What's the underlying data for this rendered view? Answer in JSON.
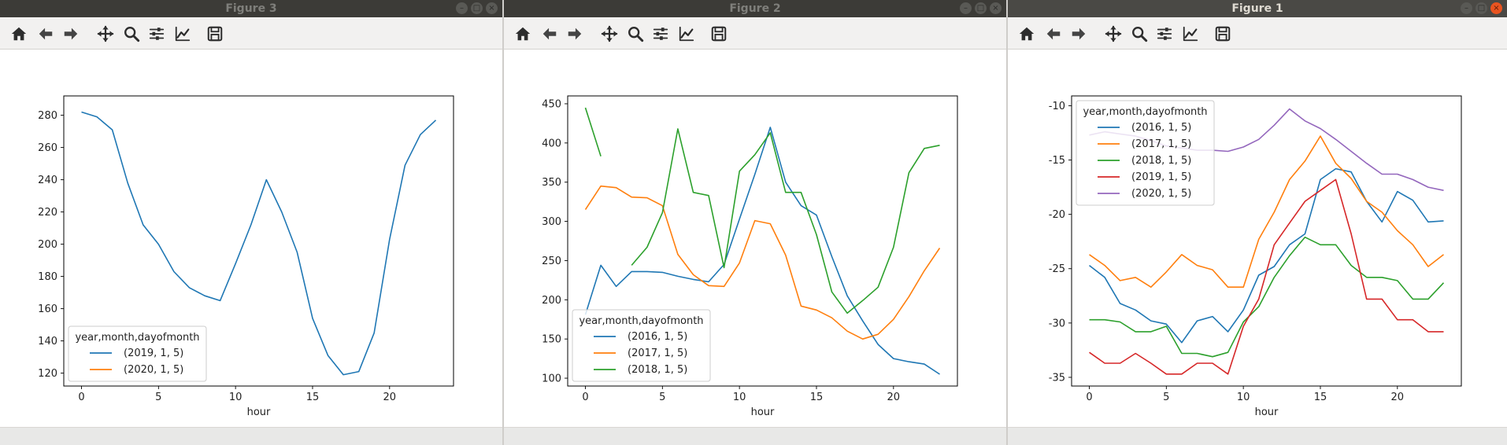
{
  "windows": [
    {
      "title": "Figure 3",
      "active": false,
      "chart": {
        "type": "line",
        "xlabel": "hour",
        "xlim": [
          -1.15,
          24.15
        ],
        "ylim": [
          112,
          292
        ],
        "xticks": [
          0,
          5,
          10,
          15,
          20
        ],
        "yticks": [
          120,
          140,
          160,
          180,
          200,
          220,
          240,
          260,
          280
        ],
        "legend": {
          "title": "year,month,dayofmonth",
          "position": "lower left",
          "entries": [
            {
              "label": "(2019, 1, 5)",
              "color": "#1f77b4"
            },
            {
              "label": "(2020, 1, 5)",
              "color": "#ff7f0e"
            }
          ]
        },
        "series": [
          {
            "name": "(2019, 1, 5)",
            "color": "#1f77b4",
            "x": [
              0,
              1,
              2,
              3,
              4,
              5,
              6,
              7,
              8,
              9,
              10,
              11,
              12,
              13,
              14,
              15,
              16,
              17,
              18,
              19,
              20,
              21,
              22,
              23
            ],
            "values": [
              282,
              279,
              271,
              238,
              212,
              200,
              183,
              173,
              168,
              165,
              188,
              212,
              240,
              220,
              195,
              154,
              131,
              119,
              121,
              145,
              203,
              249,
              268,
              277
            ]
          },
          {
            "name": "(2020, 1, 5)",
            "color": "#ff7f0e",
            "x": [],
            "values": []
          }
        ]
      }
    },
    {
      "title": "Figure 2",
      "active": false,
      "chart": {
        "type": "line",
        "xlabel": "hour",
        "xlim": [
          -1.15,
          24.15
        ],
        "ylim": [
          90,
          460
        ],
        "xticks": [
          0,
          5,
          10,
          15,
          20
        ],
        "yticks": [
          100,
          150,
          200,
          250,
          300,
          350,
          400,
          450
        ],
        "legend": {
          "title": "year,month,dayofmonth",
          "position": "lower left",
          "entries": [
            {
              "label": "(2016, 1, 5)",
              "color": "#1f77b4"
            },
            {
              "label": "(2017, 1, 5)",
              "color": "#ff7f0e"
            },
            {
              "label": "(2018, 1, 5)",
              "color": "#2ca02c"
            }
          ]
        },
        "series": [
          {
            "name": "(2016, 1, 5)",
            "color": "#1f77b4",
            "x": [
              0,
              1,
              2,
              3,
              4,
              5,
              6,
              7,
              8,
              9,
              10,
              11,
              12,
              13,
              14,
              15,
              16,
              17,
              18,
              19,
              20,
              21,
              22,
              23
            ],
            "values": [
              181,
              244,
              217,
              236,
              236,
              235,
              230,
              226,
              223,
              245,
              303,
              360,
              420,
              350,
              320,
              308,
              255,
              205,
              173,
              143,
              125,
              121,
              118,
              105
            ]
          },
          {
            "name": "(2017, 1, 5)",
            "color": "#ff7f0e",
            "x": [
              0,
              1,
              2,
              3,
              4,
              5,
              6,
              7,
              8,
              9,
              10,
              11,
              12,
              13,
              14,
              15,
              16,
              17,
              18,
              19,
              20,
              21,
              22,
              23
            ],
            "values": [
              315,
              345,
              343,
              331,
              330,
              320,
              258,
              232,
              218,
              217,
              247,
              301,
              297,
              257,
              192,
              187,
              177,
              160,
              150,
              156,
              175,
              204,
              237,
              266
            ]
          },
          {
            "name": "(2018, 1, 5)",
            "color": "#2ca02c",
            "x": [
              0,
              1,
              null,
              3,
              4,
              5,
              6,
              7,
              8,
              9,
              10,
              11,
              12,
              13,
              14,
              15,
              16,
              17,
              18,
              19,
              20,
              21,
              22,
              23
            ],
            "values": [
              445,
              383,
              null,
              244,
              267,
              311,
              418,
              337,
              333,
              241,
              364,
              385,
              413,
              337,
              337,
              283,
              210,
              183,
              199,
              216,
              267,
              362,
              393,
              397
            ]
          }
        ]
      }
    },
    {
      "title": "Figure 1",
      "active": true,
      "chart": {
        "type": "line",
        "xlabel": "hour",
        "xlim": [
          -1.15,
          24.15
        ],
        "ylim": [
          -35.8,
          -9.1
        ],
        "xticks": [
          0,
          5,
          10,
          15,
          20
        ],
        "yticks": [
          -35,
          -30,
          -25,
          -20,
          -15,
          -10
        ],
        "legend": {
          "title": "year,month,dayofmonth",
          "position": "upper left",
          "entries": [
            {
              "label": "(2016, 1, 5)",
              "color": "#1f77b4"
            },
            {
              "label": "(2017, 1, 5)",
              "color": "#ff7f0e"
            },
            {
              "label": "(2018, 1, 5)",
              "color": "#2ca02c"
            },
            {
              "label": "(2019, 1, 5)",
              "color": "#d62728"
            },
            {
              "label": "(2020, 1, 5)",
              "color": "#9467bd"
            }
          ]
        },
        "series": [
          {
            "name": "(2016, 1, 5)",
            "color": "#1f77b4",
            "x": [
              0,
              1,
              2,
              3,
              4,
              5,
              6,
              7,
              8,
              9,
              10,
              11,
              12,
              13,
              14,
              15,
              16,
              17,
              18,
              19,
              20,
              21,
              22,
              23
            ],
            "values": [
              -24.7,
              -25.8,
              -28.2,
              -28.8,
              -29.8,
              -30.1,
              -31.8,
              -29.8,
              -29.4,
              -30.8,
              -28.8,
              -25.6,
              -24.8,
              -22.8,
              -21.8,
              -16.8,
              -15.8,
              -16.1,
              -18.8,
              -20.7,
              -17.9,
              -18.7,
              -20.7,
              -20.6
            ]
          },
          {
            "name": "(2017, 1, 5)",
            "color": "#ff7f0e",
            "x": [
              0,
              1,
              2,
              3,
              4,
              5,
              6,
              7,
              8,
              9,
              10,
              11,
              12,
              13,
              14,
              15,
              16,
              17,
              18,
              19,
              20,
              21,
              22,
              23
            ],
            "values": [
              -23.7,
              -24.7,
              -26.1,
              -25.8,
              -26.7,
              -25.3,
              -23.7,
              -24.7,
              -25.1,
              -26.7,
              -26.7,
              -22.3,
              -19.8,
              -16.8,
              -15.1,
              -12.8,
              -15.3,
              -16.7,
              -18.8,
              -19.8,
              -21.5,
              -22.8,
              -24.8,
              -23.7
            ]
          },
          {
            "name": "(2018, 1, 5)",
            "color": "#2ca02c",
            "x": [
              0,
              1,
              2,
              3,
              4,
              5,
              6,
              7,
              8,
              9,
              10,
              11,
              12,
              13,
              14,
              15,
              16,
              17,
              18,
              19,
              20,
              21,
              22,
              23
            ],
            "values": [
              -29.7,
              -29.7,
              -29.9,
              -30.8,
              -30.8,
              -30.3,
              -32.8,
              -32.8,
              -33.1,
              -32.7,
              -29.9,
              -28.5,
              -25.8,
              -23.8,
              -22.1,
              -22.8,
              -22.8,
              -24.7,
              -25.8,
              -25.8,
              -26.1,
              -27.8,
              -27.8,
              -26.3
            ]
          },
          {
            "name": "(2019, 1, 5)",
            "color": "#d62728",
            "x": [
              0,
              1,
              2,
              3,
              4,
              5,
              6,
              7,
              8,
              9,
              10,
              11,
              12,
              13,
              14,
              15,
              16,
              17,
              18,
              19,
              20,
              21,
              22,
              23
            ],
            "values": [
              -32.7,
              -33.7,
              -33.7,
              -32.8,
              -33.7,
              -34.7,
              -34.7,
              -33.7,
              -33.7,
              -34.7,
              -30.3,
              -27.8,
              -22.8,
              -20.8,
              -18.8,
              -17.8,
              -16.8,
              -21.8,
              -27.8,
              -27.8,
              -29.7,
              -29.7,
              -30.8,
              -30.8
            ]
          },
          {
            "name": "(2020, 1, 5)",
            "color": "#9467bd",
            "x": [
              0,
              1,
              2,
              3,
              4,
              5,
              6,
              7,
              8,
              9,
              10,
              11,
              12,
              13,
              14,
              15,
              16,
              17,
              18,
              19,
              20,
              21,
              22,
              23
            ],
            "values": [
              -12.7,
              -12.4,
              -12.6,
              -12.8,
              -13.2,
              -13.7,
              -13.9,
              -14.1,
              -14.1,
              -14.2,
              -13.8,
              -13.1,
              -11.8,
              -10.3,
              -11.4,
              -12.1,
              -13.1,
              -14.2,
              -15.3,
              -16.3,
              -16.3,
              -16.8,
              -17.5,
              -17.8
            ]
          }
        ]
      }
    }
  ],
  "toolbar_icons": [
    "home-icon",
    "back-arrow-icon",
    "forward-arrow-icon",
    "pan-icon",
    "zoom-icon",
    "configure-subplots-icon",
    "edit-axis-icon",
    "save-icon"
  ]
}
